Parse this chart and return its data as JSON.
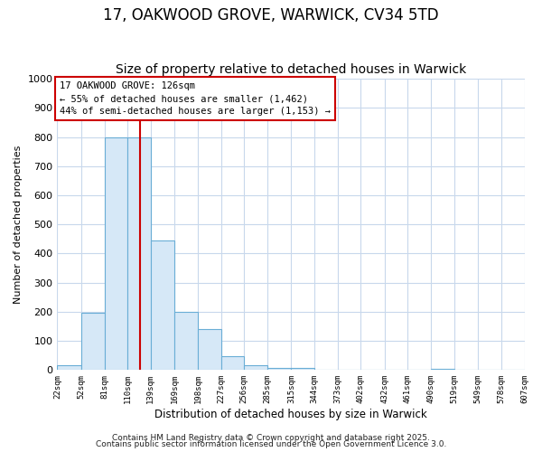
{
  "title1": "17, OAKWOOD GROVE, WARWICK, CV34 5TD",
  "title2": "Size of property relative to detached houses in Warwick",
  "xlabel": "Distribution of detached houses by size in Warwick",
  "ylabel": "Number of detached properties",
  "bin_edges": [
    22,
    52,
    81,
    110,
    139,
    169,
    198,
    227,
    256,
    285,
    315,
    344,
    373,
    402,
    432,
    461,
    490,
    519,
    549,
    578,
    607
  ],
  "bar_heights": [
    15,
    195,
    800,
    800,
    445,
    200,
    140,
    48,
    15,
    8,
    8,
    0,
    0,
    0,
    0,
    0,
    5,
    0,
    0,
    0
  ],
  "bar_color": "#d6e8f7",
  "bar_edge_color": "#6aaed6",
  "bar_edge_width": 0.8,
  "red_line_x": 126,
  "red_line_color": "#cc0000",
  "annotation_line1": "17 OAKWOOD GROVE: 126sqm",
  "annotation_line2": "← 55% of detached houses are smaller (1,462)",
  "annotation_line3": "44% of semi-detached houses are larger (1,153) →",
  "annotation_box_color": "#ffffff",
  "annotation_box_edge": "#cc0000",
  "ylim": [
    0,
    1000
  ],
  "grid_color": "#c8d8ec",
  "bg_color": "#ffffff",
  "plot_bg_color": "#ffffff",
  "footnote1": "Contains HM Land Registry data © Crown copyright and database right 2025.",
  "footnote2": "Contains public sector information licensed under the Open Government Licence 3.0.",
  "title_fontsize": 12,
  "subtitle_fontsize": 10,
  "tick_labels": [
    "22sqm",
    "52sqm",
    "81sqm",
    "110sqm",
    "139sqm",
    "169sqm",
    "198sqm",
    "227sqm",
    "256sqm",
    "285sqm",
    "315sqm",
    "344sqm",
    "373sqm",
    "402sqm",
    "432sqm",
    "461sqm",
    "490sqm",
    "519sqm",
    "549sqm",
    "578sqm",
    "607sqm"
  ]
}
